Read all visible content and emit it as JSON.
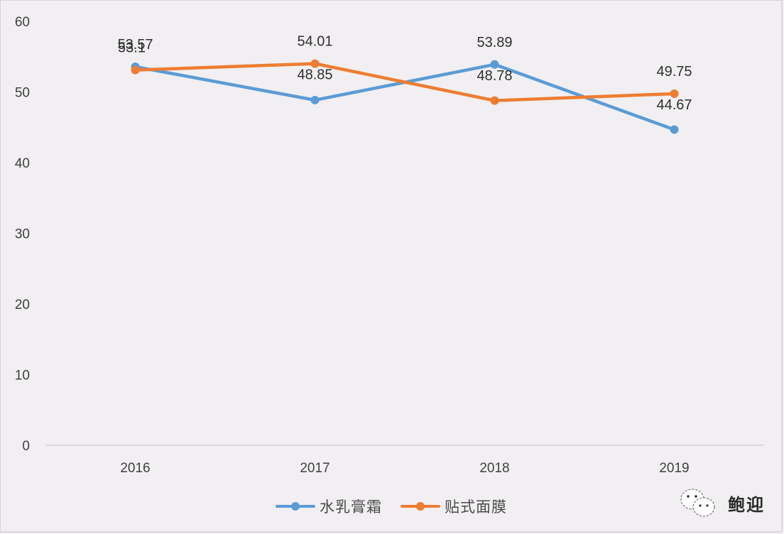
{
  "chart_data": {
    "type": "line",
    "title": "",
    "xlabel": "",
    "ylabel": "",
    "categories": [
      "2016",
      "2017",
      "2018",
      "2019"
    ],
    "ylim": [
      0,
      60
    ],
    "yticks": [
      "0",
      "10",
      "20",
      "30",
      "40",
      "50",
      "60"
    ],
    "grid": false,
    "legend_position": "bottom",
    "series": [
      {
        "name": "水乳膏霜",
        "color": "#5b9bd5",
        "values": [
          53.57,
          48.85,
          53.89,
          44.67
        ],
        "labels": [
          "53.57",
          "48.85",
          "53.89",
          "44.67"
        ]
      },
      {
        "name": "贴式面膜",
        "color": "#ed7d31",
        "values": [
          53.1,
          54.01,
          48.78,
          49.75
        ],
        "labels": [
          "53.1",
          "54.01",
          "48.78",
          "49.75"
        ]
      }
    ]
  },
  "legend": {
    "items": [
      {
        "label": "水乳膏霜",
        "color": "#5b9bd5"
      },
      {
        "label": "贴式面膜",
        "color": "#ed7d31"
      }
    ]
  },
  "watermark": {
    "icon": "wechat-icon",
    "text": "鲍迎"
  }
}
